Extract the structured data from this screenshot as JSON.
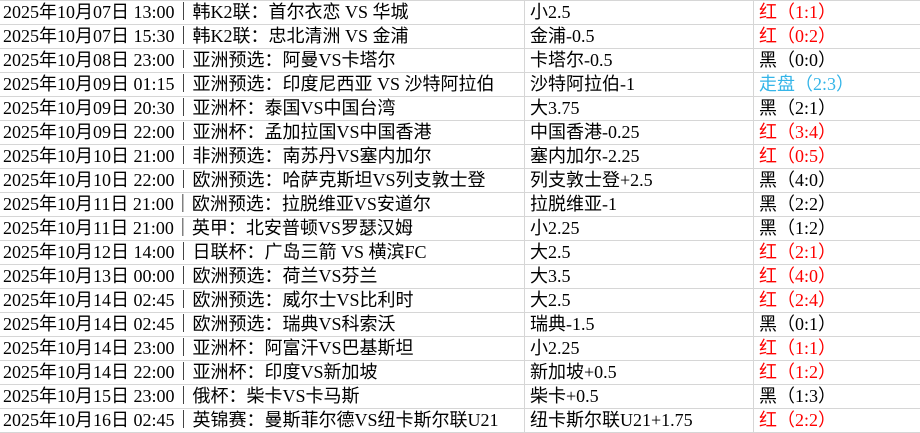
{
  "table": {
    "grid_color": "#d6d6d6",
    "colors": {
      "red": "#fe0000",
      "black": "#000000",
      "push": "#35b5e8"
    },
    "rows": [
      {
        "match": "2025年10月07日 13:00｜韩K2联：首尔衣恋 VS 华城",
        "handicap": "小2.5",
        "result": "红（1:1）",
        "result_type": "red"
      },
      {
        "match": "2025年10月07日 15:30｜韩K2联：忠北清洲 VS 金浦",
        "handicap": "金浦-0.5",
        "result": "红（0:2）",
        "result_type": "red"
      },
      {
        "match": "2025年10月08日 23:00｜亚洲预选：阿曼VS卡塔尔",
        "handicap": "卡塔尔-0.5",
        "result": "黑（0:0）",
        "result_type": "black"
      },
      {
        "match": "2025年10月09日 01:15｜亚洲预选：印度尼西亚 VS 沙特阿拉伯",
        "handicap": "沙特阿拉伯-1",
        "result": "走盘（2:3）",
        "result_type": "push"
      },
      {
        "match": "2025年10月09日 20:30｜亚洲杯：泰国VS中国台湾",
        "handicap": "大3.75",
        "result": "黑（2:1）",
        "result_type": "black"
      },
      {
        "match": "2025年10月09日 22:00｜亚洲杯：孟加拉国VS中国香港",
        "handicap": "中国香港-0.25",
        "result": "红（3:4）",
        "result_type": "red"
      },
      {
        "match": "2025年10月10日 21:00｜非洲预选：南苏丹VS塞内加尔",
        "handicap": "塞内加尔-2.25",
        "result": "红（0:5）",
        "result_type": "red"
      },
      {
        "match": "2025年10月10日 22:00｜欧洲预选：哈萨克斯坦VS列支敦士登",
        "handicap": "列支敦士登+2.5",
        "result": "黑（4:0）",
        "result_type": "black"
      },
      {
        "match": "2025年10月11日 21:00｜欧洲预选：拉脱维亚VS安道尔",
        "handicap": "拉脱维亚-1",
        "result": "黑（2:2）",
        "result_type": "black"
      },
      {
        "match": "2025年10月11日 21:00｜英甲：北安普顿VS罗瑟汉姆",
        "handicap": "小2.25",
        "result": "黑（1:2）",
        "result_type": "black"
      },
      {
        "match": "2025年10月12日 14:00｜日联杯：广岛三箭 VS 横滨FC",
        "handicap": "大2.5",
        "result": "红（2:1）",
        "result_type": "red"
      },
      {
        "match": "2025年10月13日 00:00｜欧洲预选：荷兰VS芬兰",
        "handicap": "大3.5",
        "result": "红（4:0）",
        "result_type": "red"
      },
      {
        "match": "2025年10月14日 02:45｜欧洲预选：威尔士VS比利时",
        "handicap": "大2.5",
        "result": "红（2:4）",
        "result_type": "red"
      },
      {
        "match": "2025年10月14日 02:45｜欧洲预选：瑞典VS科索沃",
        "handicap": "瑞典-1.5",
        "result": "黑（0:1）",
        "result_type": "black"
      },
      {
        "match": "2025年10月14日 23:00｜亚洲杯：阿富汗VS巴基斯坦",
        "handicap": "小2.25",
        "result": "红（1:1）",
        "result_type": "red"
      },
      {
        "match": "2025年10月14日 22:00｜亚洲杯：印度VS新加坡",
        "handicap": "新加坡+0.5",
        "result": "红（1:2）",
        "result_type": "red"
      },
      {
        "match": "2025年10月15日 23:00｜俄杯：柴卡VS卡马斯",
        "handicap": "柴卡+0.5",
        "result": "黑（1:3）",
        "result_type": "black"
      },
      {
        "match": "2025年10月16日 02:45｜英锦赛：曼斯菲尔德VS纽卡斯尔联U21",
        "handicap": "纽卡斯尔联U21+1.75",
        "result": "红（2:2）",
        "result_type": "red"
      }
    ]
  }
}
